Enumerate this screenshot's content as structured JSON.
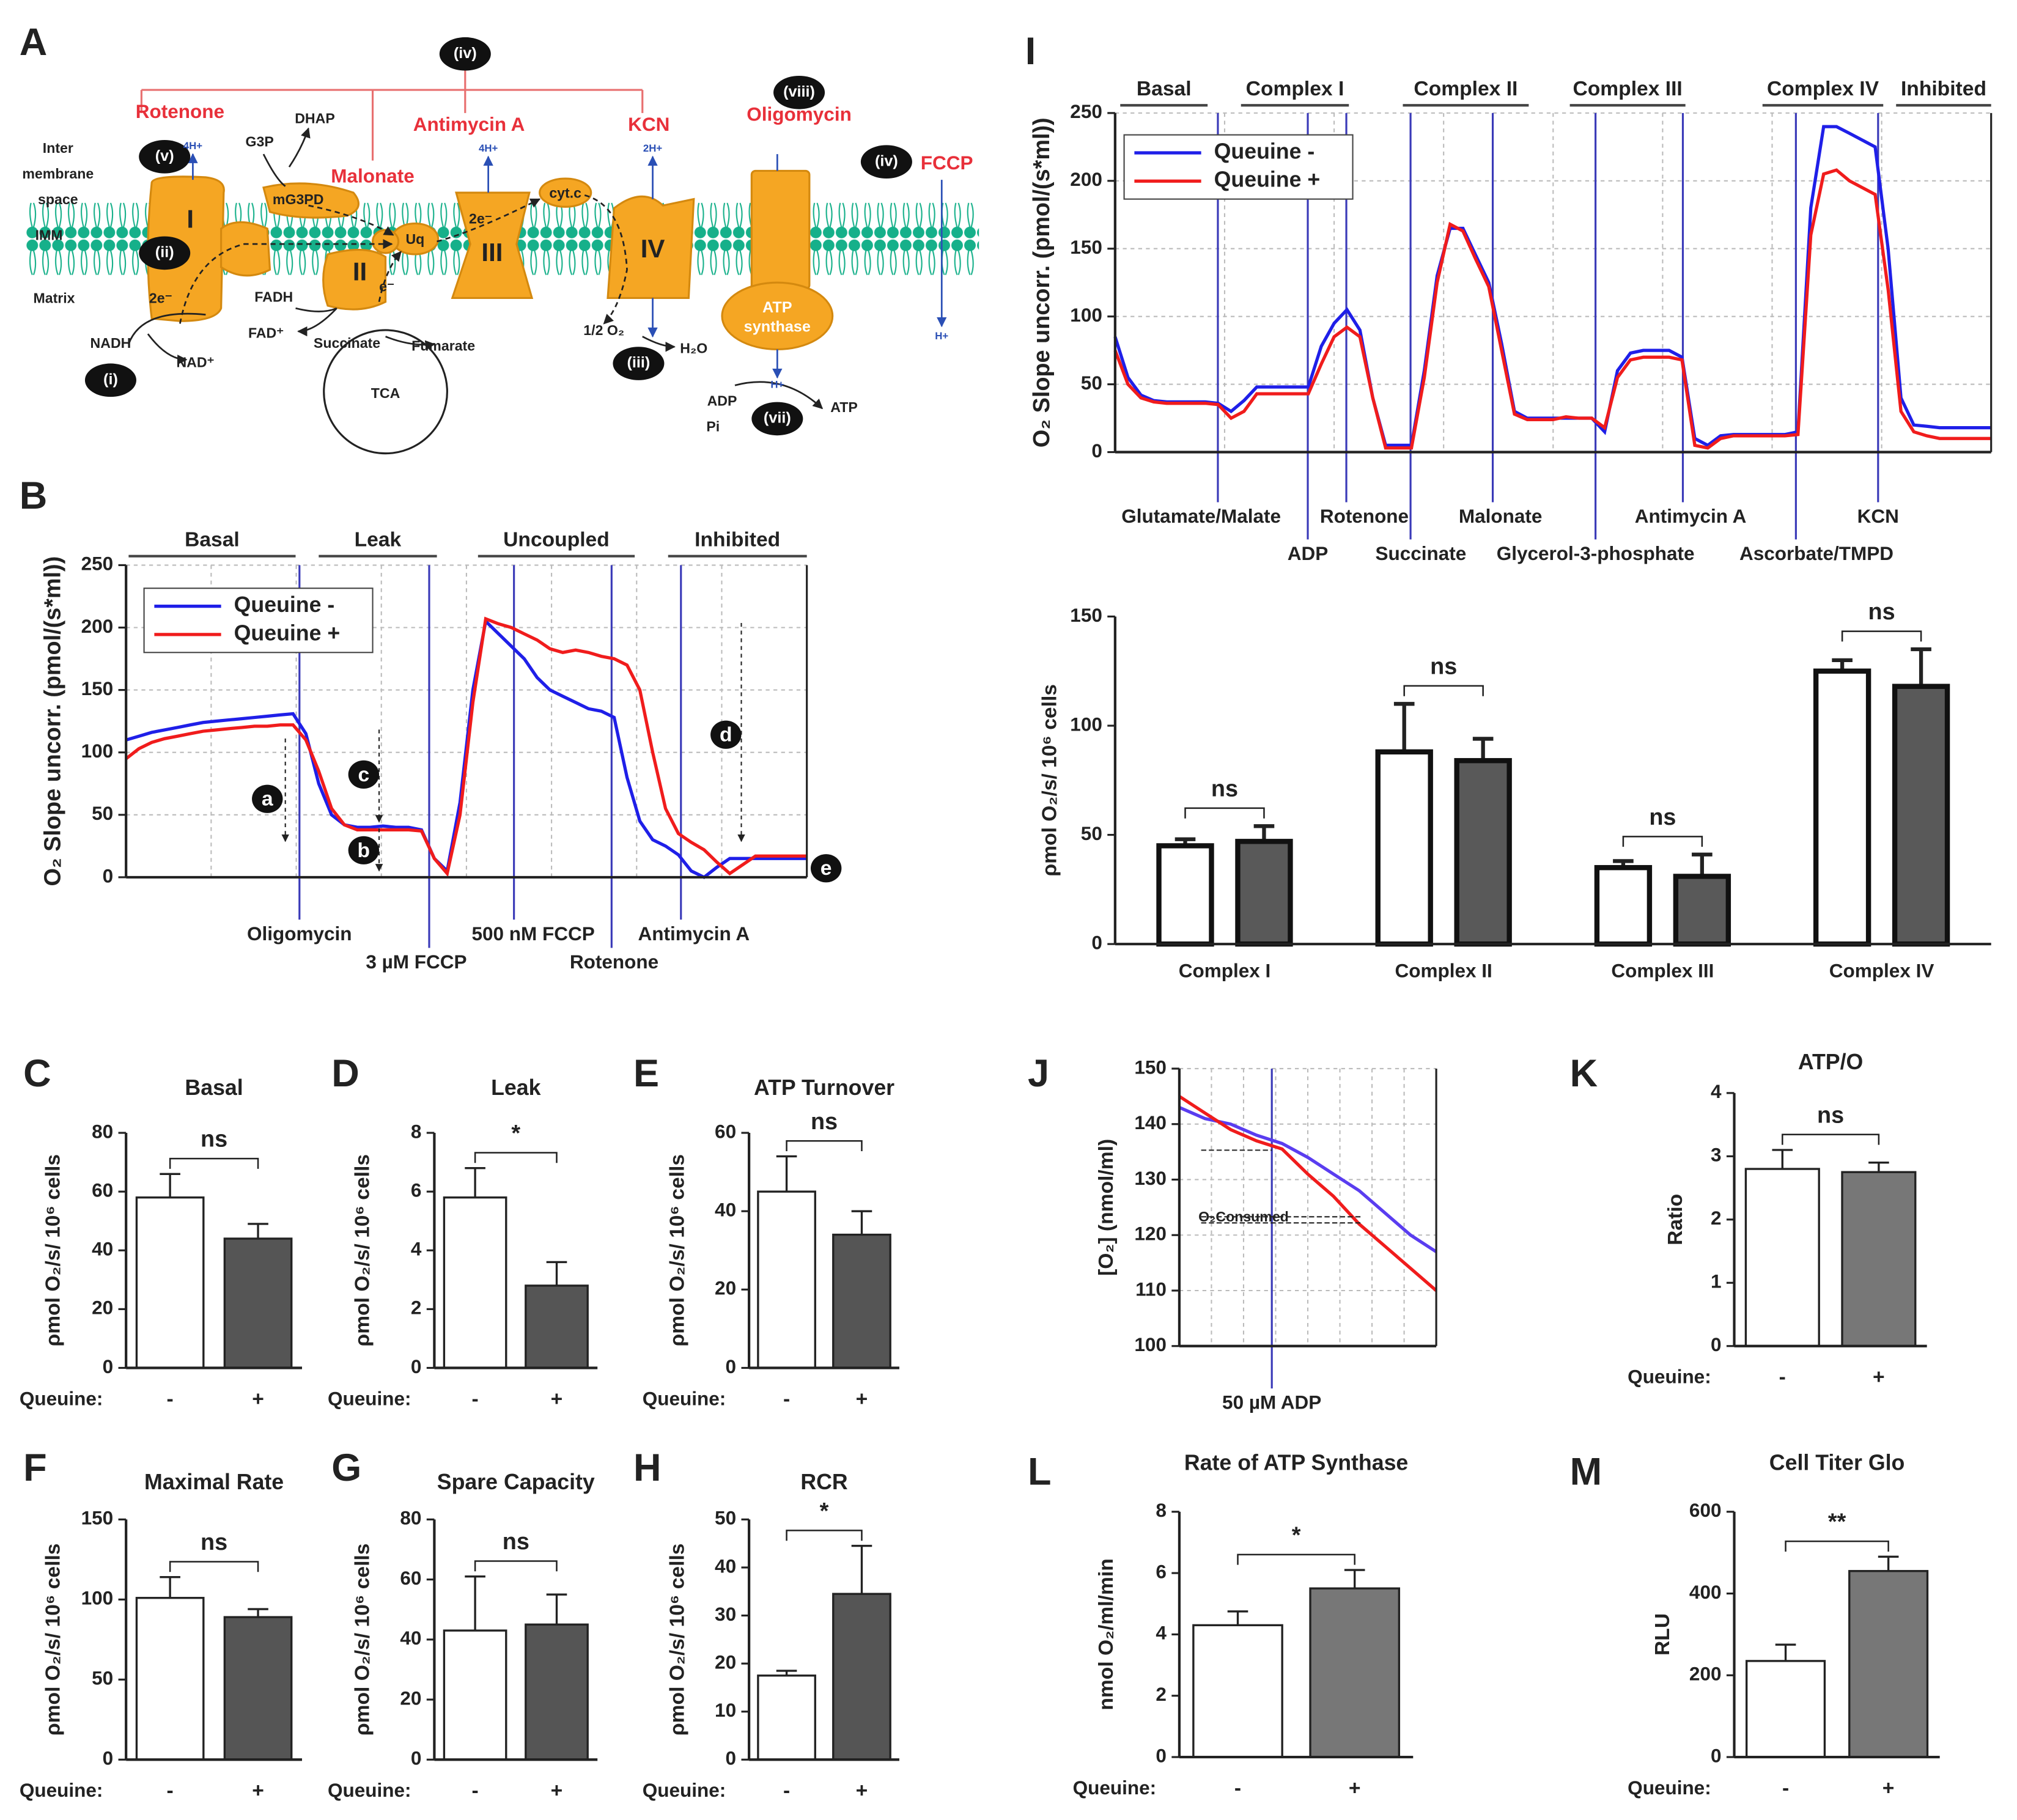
{
  "diagram": {
    "panel": "A",
    "labels": [
      "(iv)",
      "Rotenone",
      "Antimycin A",
      "KCN",
      "(viii)",
      "Oligomycin",
      "Malonate",
      "(v)",
      "4H+",
      "G3P",
      "DHAP",
      "mG3PD",
      "Inter",
      "membrane",
      "space",
      "IMM",
      "Matrix",
      "I",
      "(ii)",
      "2e⁻",
      "Uq",
      "II",
      "e⁻",
      "FADH",
      "FAD⁺",
      "Succinate",
      "Fumarate",
      "TCA",
      "NADH",
      "(i)",
      "NAD⁺",
      "III",
      "2e⁻",
      "4H+",
      "cyt.c",
      "IV",
      "2H+",
      "1/2 O₂",
      "H₂O",
      "(iii)",
      "ATP",
      "synthase",
      "H+",
      "ADP",
      "Pi",
      "(vii)",
      "ATP",
      "(iv)",
      "FCCP",
      "H+"
    ]
  },
  "chart_data": [
    {
      "type": "line",
      "panel": "B",
      "ylabel": "O₂ Slope uncorr. (pmol/(s*ml))",
      "ylim": [
        0,
        250
      ],
      "yticks": [
        0,
        50,
        100,
        150,
        200,
        250
      ],
      "grid": true,
      "legend": "upper left",
      "phases": [
        "Basal",
        "Leak",
        "Uncoupled",
        "Inhibited"
      ],
      "events": [
        "Oligomycin",
        "3 µM FCCP",
        "500 nM FCCP",
        "Rotenone",
        "Antimycin A"
      ],
      "markers": [
        "a",
        "b",
        "c",
        "d",
        "e"
      ],
      "series": [
        {
          "name": "Queuine -",
          "color": "#1f1fe8",
          "values": [
            110,
            113,
            116,
            118,
            120,
            122,
            124,
            125,
            126,
            127,
            128,
            129,
            130,
            131,
            115,
            75,
            50,
            42,
            40,
            40,
            41,
            40,
            40,
            38,
            15,
            5,
            60,
            150,
            205,
            195,
            185,
            175,
            160,
            150,
            145,
            140,
            135,
            133,
            128,
            80,
            45,
            30,
            25,
            18,
            5,
            0,
            8,
            15,
            15,
            15,
            15,
            15,
            15,
            15
          ]
        },
        {
          "name": "Queuine +",
          "color": "#f01c1c",
          "values": [
            95,
            103,
            108,
            111,
            113,
            115,
            117,
            118,
            119,
            120,
            121,
            121,
            122,
            122,
            110,
            85,
            55,
            42,
            38,
            38,
            38,
            38,
            38,
            37,
            15,
            3,
            50,
            140,
            207,
            203,
            200,
            195,
            190,
            183,
            180,
            182,
            180,
            177,
            175,
            170,
            150,
            100,
            55,
            35,
            28,
            22,
            12,
            3,
            10,
            17,
            17,
            17,
            17,
            17
          ]
        }
      ]
    },
    {
      "type": "line",
      "panel": "I",
      "ylabel": "O₂ Slope uncorr. (pmol/(s*ml))",
      "ylim": [
        0,
        250
      ],
      "yticks": [
        0,
        50,
        100,
        150,
        200,
        250
      ],
      "grid": true,
      "legend": "upper left",
      "phases": [
        "Basal",
        "Complex I",
        "Complex II",
        "Complex III",
        "Complex IV",
        "Inhibited"
      ],
      "events": [
        "Glutamate/Malate",
        "ADP",
        "Rotenone",
        "Succinate",
        "Malonate",
        "Glycerol-3-phosphate",
        "Antimycin A",
        "Ascorbate/TMPD",
        "KCN"
      ],
      "series": [
        {
          "name": "Queuine -",
          "color": "#1f1fe8",
          "values": [
            85,
            55,
            42,
            38,
            37,
            37,
            37,
            37,
            36,
            30,
            38,
            48,
            48,
            48,
            48,
            48,
            78,
            95,
            105,
            90,
            40,
            5,
            5,
            5,
            60,
            130,
            165,
            165,
            145,
            125,
            80,
            30,
            25,
            25,
            25,
            25,
            25,
            25,
            15,
            60,
            73,
            75,
            75,
            75,
            70,
            10,
            5,
            12,
            13,
            13,
            13,
            13,
            13,
            15,
            180,
            240,
            240,
            235,
            230,
            225,
            150,
            40,
            20,
            19,
            18,
            18,
            18,
            18,
            18
          ]
        },
        {
          "name": "Queuine +",
          "color": "#f01c1c",
          "values": [
            75,
            50,
            40,
            37,
            36,
            36,
            36,
            36,
            35,
            25,
            30,
            43,
            43,
            43,
            43,
            43,
            65,
            85,
            92,
            85,
            40,
            3,
            3,
            3,
            55,
            125,
            168,
            163,
            142,
            122,
            75,
            28,
            24,
            24,
            24,
            26,
            25,
            25,
            18,
            55,
            68,
            70,
            70,
            70,
            68,
            5,
            3,
            10,
            12,
            12,
            12,
            12,
            12,
            13,
            160,
            205,
            208,
            200,
            195,
            190,
            120,
            30,
            15,
            12,
            10,
            10,
            10,
            10,
            10
          ]
        }
      ]
    },
    {
      "type": "bar",
      "ylabel": "ρmol O₂/s/ 10⁶ cells",
      "ylim": [
        0,
        150
      ],
      "yticks": [
        0,
        50,
        100,
        150
      ],
      "categories": [
        "Complex I",
        "Complex II",
        "Complex III",
        "Complex IV"
      ],
      "significance": [
        "ns",
        "ns",
        "ns",
        "ns"
      ],
      "series": [
        {
          "color": "#ffffff",
          "values": [
            45,
            88,
            35,
            125
          ],
          "errors": [
            3,
            22,
            3,
            5
          ]
        },
        {
          "color": "#595959",
          "values": [
            47,
            84,
            31,
            118
          ],
          "errors": [
            7,
            10,
            10,
            17
          ]
        }
      ]
    },
    {
      "type": "bar",
      "panel": "C",
      "title": "Basal",
      "ylabel": "ρmol O₂/s/ 10⁶ cells",
      "xlabel": "Queuine:",
      "categories": [
        "-",
        "+"
      ],
      "ylim": [
        0,
        80
      ],
      "yticks": [
        0,
        20,
        40,
        60,
        80
      ],
      "values": [
        58,
        44
      ],
      "errors": [
        8,
        5
      ],
      "colors": [
        "#ffffff",
        "#555555"
      ],
      "significance": "ns"
    },
    {
      "type": "bar",
      "panel": "D",
      "title": "Leak",
      "ylabel": "ρmol O₂/s/ 10⁶ cells",
      "xlabel": "Queuine:",
      "categories": [
        "-",
        "+"
      ],
      "ylim": [
        0,
        8
      ],
      "yticks": [
        0,
        2,
        4,
        6,
        8
      ],
      "values": [
        5.8,
        2.8
      ],
      "errors": [
        1,
        0.8
      ],
      "colors": [
        "#ffffff",
        "#555555"
      ],
      "significance": "*"
    },
    {
      "type": "bar",
      "panel": "E",
      "title": "ATP Turnover",
      "ylabel": "ρmol O₂/s/ 10⁶ cells",
      "xlabel": "Queuine:",
      "categories": [
        "-",
        "+"
      ],
      "ylim": [
        0,
        60
      ],
      "yticks": [
        0,
        20,
        40,
        60
      ],
      "values": [
        45,
        34
      ],
      "errors": [
        9,
        6
      ],
      "colors": [
        "#ffffff",
        "#555555"
      ],
      "significance": "ns"
    },
    {
      "type": "bar",
      "panel": "F",
      "title": "Maximal Rate",
      "ylabel": "ρmol O₂/s/ 10⁶ cells",
      "xlabel": "Queuine:",
      "categories": [
        "-",
        "+"
      ],
      "ylim": [
        0,
        150
      ],
      "yticks": [
        0,
        50,
        100,
        150
      ],
      "values": [
        101,
        89
      ],
      "errors": [
        13,
        5
      ],
      "colors": [
        "#ffffff",
        "#555555"
      ],
      "significance": "ns"
    },
    {
      "type": "bar",
      "panel": "G",
      "title": "Spare Capacity",
      "ylabel": "ρmol O₂/s/ 10⁶ cells",
      "xlabel": "Queuine:",
      "categories": [
        "-",
        "+"
      ],
      "ylim": [
        0,
        80
      ],
      "yticks": [
        0,
        20,
        40,
        60,
        80
      ],
      "values": [
        43,
        45
      ],
      "errors": [
        18,
        10
      ],
      "colors": [
        "#ffffff",
        "#555555"
      ],
      "significance": "ns"
    },
    {
      "type": "bar",
      "panel": "H",
      "title": "RCR",
      "ylabel": "ρmol O₂/s/ 10⁶ cells",
      "xlabel": "Queuine:",
      "categories": [
        "-",
        "+"
      ],
      "ylim": [
        0,
        50
      ],
      "yticks": [
        0,
        10,
        20,
        30,
        40,
        50
      ],
      "values": [
        17.5,
        34.5
      ],
      "errors": [
        1,
        10
      ],
      "colors": [
        "#ffffff",
        "#555555"
      ],
      "significance": "*"
    },
    {
      "type": "line",
      "panel": "J",
      "ylabel": "[O₂]  (nmol/ml)",
      "ylim": [
        100,
        150
      ],
      "yticks": [
        100,
        110,
        120,
        130,
        140,
        150
      ],
      "grid": true,
      "events": [
        "50 µM ADP"
      ],
      "annotation": "O₂Consumed",
      "series": [
        {
          "color": "#5a3df0",
          "values": [
            143,
            141,
            140,
            138,
            136.5,
            134,
            131,
            128,
            124,
            120,
            117
          ]
        },
        {
          "color": "#f01c1c",
          "values": [
            145,
            142,
            139,
            137,
            135.5,
            131,
            127,
            122,
            118,
            114,
            110
          ]
        }
      ]
    },
    {
      "type": "bar",
      "panel": "K",
      "title": "ATP/O",
      "ylabel": "Ratio",
      "xlabel": "Queuine:",
      "categories": [
        "-",
        "+"
      ],
      "ylim": [
        0,
        4
      ],
      "yticks": [
        0,
        1,
        2,
        3,
        4
      ],
      "values": [
        2.8,
        2.75
      ],
      "errors": [
        0.3,
        0.15
      ],
      "colors": [
        "#ffffff",
        "#777777"
      ],
      "significance": "ns"
    },
    {
      "type": "bar",
      "panel": "L",
      "title": "Rate of ATP Synthase",
      "ylabel": "nmol O₂/ml/min",
      "xlabel": "Queuine:",
      "categories": [
        "-",
        "+"
      ],
      "ylim": [
        0,
        8
      ],
      "yticks": [
        0,
        2,
        4,
        6,
        8
      ],
      "values": [
        4.3,
        5.5
      ],
      "errors": [
        0.45,
        0.6
      ],
      "colors": [
        "#ffffff",
        "#777777"
      ],
      "significance": "*"
    },
    {
      "type": "bar",
      "panel": "M",
      "title": "Cell Titer Glo",
      "ylabel": "RLU",
      "xlabel": "Queuine:",
      "categories": [
        "-",
        "+"
      ],
      "ylim": [
        0,
        600
      ],
      "yticks": [
        0,
        200,
        400,
        600
      ],
      "values": [
        235,
        455
      ],
      "errors": [
        40,
        35
      ],
      "colors": [
        "#ffffff",
        "#777777"
      ],
      "significance": "**"
    }
  ]
}
